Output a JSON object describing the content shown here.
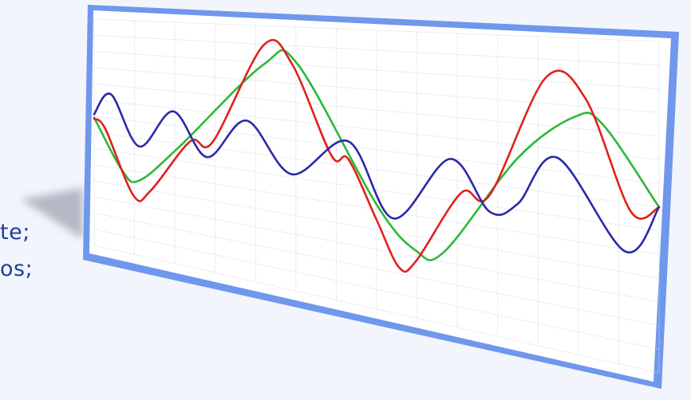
{
  "side_text": {
    "line1": "te;",
    "line2": "os;"
  },
  "colors": {
    "frame": "#6f97ec",
    "frame_shadow": "#b0b6c2",
    "board": "#ffffff",
    "grid": "#d3d7de",
    "text": "#1f3f9c"
  },
  "chart_data": {
    "type": "line",
    "title": "",
    "xlabel": "",
    "ylabel": "",
    "grid": true,
    "xlim": [
      0,
      1
    ],
    "ylim": [
      -1,
      1
    ],
    "series": [
      {
        "color": "#2db838",
        "values": [
          [
            0.0,
            0.13
          ],
          [
            0.05,
            -0.3
          ],
          [
            0.08,
            -0.36
          ],
          [
            0.15,
            -0.03
          ],
          [
            0.3,
            0.7
          ],
          [
            0.36,
            0.72
          ],
          [
            0.5,
            -0.25
          ],
          [
            0.57,
            -0.53
          ],
          [
            0.62,
            -0.5
          ],
          [
            0.75,
            0.2
          ],
          [
            0.85,
            0.5
          ],
          [
            0.9,
            0.47
          ],
          [
            1.0,
            0.0
          ]
        ]
      },
      {
        "color": "#e0211d",
        "values": [
          [
            0.0,
            0.12
          ],
          [
            0.02,
            0.04
          ],
          [
            0.07,
            -0.5
          ],
          [
            0.1,
            -0.43
          ],
          [
            0.17,
            0.03
          ],
          [
            0.21,
            0.05
          ],
          [
            0.3,
            0.85
          ],
          [
            0.35,
            0.72
          ],
          [
            0.42,
            0.06
          ],
          [
            0.45,
            0.05
          ],
          [
            0.5,
            -0.36
          ],
          [
            0.54,
            -0.67
          ],
          [
            0.57,
            -0.6
          ],
          [
            0.65,
            -0.08
          ],
          [
            0.7,
            -0.07
          ],
          [
            0.8,
            0.74
          ],
          [
            0.87,
            0.62
          ],
          [
            0.95,
            -0.05
          ],
          [
            1.0,
            0.0
          ]
        ]
      },
      {
        "color": "#2929a8",
        "values": [
          [
            0.0,
            0.16
          ],
          [
            0.03,
            0.35
          ],
          [
            0.08,
            -0.07
          ],
          [
            0.14,
            0.26
          ],
          [
            0.2,
            -0.08
          ],
          [
            0.27,
            0.25
          ],
          [
            0.35,
            -0.12
          ],
          [
            0.45,
            0.18
          ],
          [
            0.53,
            -0.33
          ],
          [
            0.63,
            0.14
          ],
          [
            0.7,
            -0.18
          ],
          [
            0.75,
            -0.1
          ],
          [
            0.82,
            0.23
          ],
          [
            0.94,
            -0.3
          ],
          [
            1.0,
            0.0
          ]
        ]
      }
    ]
  }
}
